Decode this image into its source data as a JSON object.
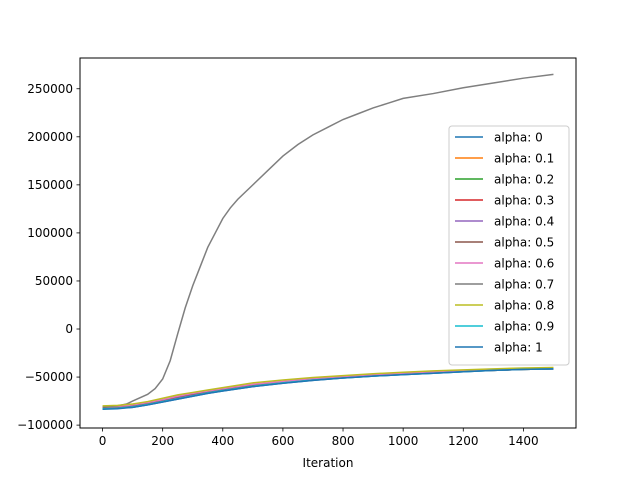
{
  "chart_data": {
    "type": "line",
    "title": "",
    "xlabel": "Iteration",
    "ylabel": "",
    "xlim": [
      -75,
      1575
    ],
    "ylim": [
      -103000,
      282000
    ],
    "xticks": [
      0,
      200,
      400,
      600,
      800,
      1000,
      1200,
      1400
    ],
    "yticks": [
      -100000,
      -50000,
      0,
      50000,
      100000,
      150000,
      200000,
      250000
    ],
    "grid": false,
    "legend": "center-right",
    "series": [
      {
        "name": "alpha: 0",
        "color": "#1f77b4",
        "x": [
          0,
          50,
          100,
          150,
          200,
          250,
          300,
          350,
          400,
          500,
          600,
          700,
          800,
          900,
          1000,
          1100,
          1200,
          1300,
          1400,
          1500
        ],
        "y": [
          -83000,
          -82500,
          -81500,
          -79000,
          -76000,
          -73000,
          -70000,
          -67000,
          -64500,
          -60000,
          -56500,
          -53500,
          -51000,
          -49000,
          -47500,
          -46000,
          -44500,
          -43000,
          -42000,
          -41500
        ]
      },
      {
        "name": "alpha: 0.1",
        "color": "#ff7f0e",
        "x": [
          0,
          50,
          100,
          150,
          200,
          250,
          300,
          350,
          400,
          500,
          600,
          700,
          800,
          900,
          1000,
          1100,
          1200,
          1300,
          1400,
          1500
        ],
        "y": [
          -81500,
          -81000,
          -79500,
          -77000,
          -74000,
          -70500,
          -67500,
          -65000,
          -62500,
          -58000,
          -55000,
          -52000,
          -50000,
          -48000,
          -46500,
          -45000,
          -43500,
          -42500,
          -41500,
          -41000
        ]
      },
      {
        "name": "alpha: 0.2",
        "color": "#2ca02c",
        "x": [
          0,
          50,
          100,
          150,
          200,
          250,
          300,
          350,
          400,
          500,
          600,
          700,
          800,
          900,
          1000,
          1100,
          1200,
          1300,
          1400,
          1500
        ],
        "y": [
          -82000,
          -81500,
          -80000,
          -77500,
          -74500,
          -71000,
          -68000,
          -65500,
          -63000,
          -58500,
          -55500,
          -52500,
          -50500,
          -48500,
          -47000,
          -45500,
          -44000,
          -43000,
          -42000,
          -41500
        ]
      },
      {
        "name": "alpha: 0.3",
        "color": "#d62728",
        "x": [
          0,
          50,
          100,
          150,
          200,
          250,
          300,
          350,
          400,
          500,
          600,
          700,
          800,
          900,
          1000,
          1100,
          1200,
          1300,
          1400,
          1500
        ],
        "y": [
          -82500,
          -82000,
          -80500,
          -78000,
          -75000,
          -71500,
          -68500,
          -66000,
          -63500,
          -59000,
          -56000,
          -53000,
          -50500,
          -48500,
          -47000,
          -45500,
          -44000,
          -43000,
          -42000,
          -41500
        ]
      },
      {
        "name": "alpha: 0.4",
        "color": "#9467bd",
        "x": [
          0,
          50,
          100,
          150,
          200,
          250,
          300,
          350,
          400,
          500,
          600,
          700,
          800,
          900,
          1000,
          1100,
          1200,
          1300,
          1400,
          1500
        ],
        "y": [
          -82000,
          -81500,
          -80000,
          -77500,
          -74500,
          -71000,
          -68000,
          -65500,
          -63000,
          -58500,
          -55500,
          -52500,
          -50500,
          -48500,
          -47000,
          -45500,
          -44000,
          -43000,
          -42000,
          -41500
        ]
      },
      {
        "name": "alpha: 0.5",
        "color": "#8c564b",
        "x": [
          0,
          50,
          100,
          150,
          200,
          250,
          300,
          350,
          400,
          500,
          600,
          700,
          800,
          900,
          1000,
          1100,
          1200,
          1300,
          1400,
          1500
        ],
        "y": [
          -81500,
          -81000,
          -79500,
          -77000,
          -74000,
          -70500,
          -67500,
          -65000,
          -62500,
          -58000,
          -55000,
          -52000,
          -50000,
          -48000,
          -46500,
          -45000,
          -43500,
          -42500,
          -41500,
          -41000
        ]
      },
      {
        "name": "alpha: 0.6",
        "color": "#e377c2",
        "x": [
          0,
          50,
          100,
          150,
          200,
          250,
          300,
          350,
          400,
          500,
          600,
          700,
          800,
          900,
          1000,
          1100,
          1200,
          1300,
          1400,
          1500
        ],
        "y": [
          -81000,
          -80500,
          -79000,
          -76500,
          -73500,
          -70000,
          -67000,
          -64500,
          -62000,
          -57500,
          -54500,
          -51500,
          -49500,
          -47500,
          -46000,
          -44500,
          -43000,
          -42000,
          -41000,
          -40500
        ]
      },
      {
        "name": "alpha: 0.7",
        "color": "#7f7f7f",
        "x": [
          0,
          50,
          80,
          100,
          150,
          175,
          200,
          225,
          250,
          275,
          300,
          325,
          350,
          375,
          400,
          425,
          450,
          500,
          550,
          600,
          650,
          700,
          750,
          800,
          850,
          900,
          950,
          1000,
          1100,
          1200,
          1300,
          1400,
          1500
        ],
        "y": [
          -81000,
          -80000,
          -78000,
          -75000,
          -68000,
          -62000,
          -52000,
          -33000,
          -5000,
          22000,
          45000,
          65000,
          85000,
          100000,
          115000,
          126000,
          135000,
          150000,
          165000,
          180000,
          192000,
          202000,
          210000,
          218000,
          224000,
          230000,
          235000,
          240000,
          245000,
          251000,
          256000,
          261000,
          265000
        ]
      },
      {
        "name": "alpha: 0.8",
        "color": "#bcbd22",
        "x": [
          0,
          50,
          100,
          150,
          200,
          250,
          300,
          350,
          400,
          500,
          600,
          700,
          800,
          900,
          1000,
          1100,
          1200,
          1300,
          1400,
          1500
        ],
        "y": [
          -80000,
          -79500,
          -78000,
          -75500,
          -72000,
          -68500,
          -66000,
          -63500,
          -61000,
          -56000,
          -53000,
          -50500,
          -48500,
          -46500,
          -45000,
          -43500,
          -42500,
          -41500,
          -40500,
          -40000
        ]
      },
      {
        "name": "alpha: 0.9",
        "color": "#17becf",
        "x": [
          0,
          50,
          100,
          150,
          200,
          250,
          300,
          350,
          400,
          500,
          600,
          700,
          800,
          900,
          1000,
          1100,
          1200,
          1300,
          1400,
          1500
        ],
        "y": [
          -83000,
          -82500,
          -81000,
          -78500,
          -75500,
          -72500,
          -69500,
          -66500,
          -64000,
          -59500,
          -56000,
          -53000,
          -51000,
          -49000,
          -47500,
          -46000,
          -44500,
          -43000,
          -42000,
          -41500
        ]
      },
      {
        "name": "alpha: 1",
        "color": "#1f77b4",
        "x": [
          0,
          50,
          100,
          150,
          200,
          250,
          300,
          350,
          400,
          500,
          600,
          700,
          800,
          900,
          1000,
          1100,
          1200,
          1300,
          1400,
          1500
        ],
        "y": [
          -83500,
          -83000,
          -81500,
          -79000,
          -76000,
          -73000,
          -70000,
          -67000,
          -64500,
          -60000,
          -56500,
          -53500,
          -51000,
          -49000,
          -47500,
          -46000,
          -44500,
          -43000,
          -42000,
          -41500
        ]
      }
    ]
  }
}
